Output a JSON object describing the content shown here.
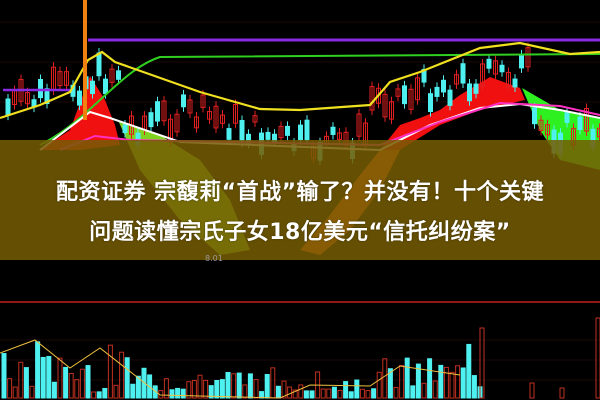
{
  "headline": {
    "line1": "配资证券 宗馥莉“首战”输了？并没有！十个关键",
    "line2": "问题读懂宗氏子女18亿美元“信托纠纷案”"
  },
  "chart_label": "8.01",
  "colors": {
    "background": "#000000",
    "overlay": "#765c04",
    "up": "#e02020",
    "down": "#4ff0f0",
    "ma_yellow": "#f0e020",
    "ma_green": "#30d020",
    "level_purple": "#8a2be2"
  }
}
